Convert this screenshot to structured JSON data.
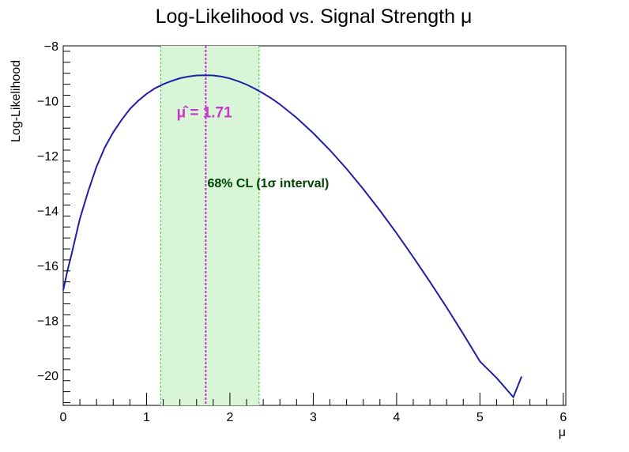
{
  "chart_data": {
    "type": "line",
    "title": "Log-Likelihood vs. Signal Strength   μ",
    "xlabel": "μ",
    "ylabel": "Log-Likelihood",
    "xlim": [
      0,
      6.03
    ],
    "ylim": [
      -21.1,
      -8
    ],
    "xticks": [
      0,
      1,
      2,
      3,
      4,
      5,
      6
    ],
    "yticks": [
      -20,
      -18,
      -16,
      -14,
      -12,
      -10,
      -8
    ],
    "grid": false,
    "series": [
      {
        "color": "#1f1fa6",
        "x": [
          0.0,
          0.05,
          0.1,
          0.2,
          0.3,
          0.4,
          0.5,
          0.6,
          0.7,
          0.8,
          0.9,
          1.0,
          1.1,
          1.2,
          1.3,
          1.4,
          1.5,
          1.6,
          1.71,
          1.8,
          1.9,
          2.0,
          2.1,
          2.2,
          2.3,
          2.4,
          2.5,
          2.6,
          2.8,
          3.0,
          3.2,
          3.4,
          3.6,
          3.8,
          4.0,
          4.2,
          4.4,
          4.6,
          4.8,
          5.0,
          5.2,
          5.4,
          5.5
        ],
        "y": [
          -16.9,
          -16.2,
          -15.6,
          -14.3,
          -13.3,
          -12.4,
          -11.7,
          -11.15,
          -10.7,
          -10.3,
          -10.0,
          -9.75,
          -9.55,
          -9.4,
          -9.28,
          -9.18,
          -9.12,
          -9.08,
          -9.07,
          -9.08,
          -9.12,
          -9.19,
          -9.29,
          -9.41,
          -9.56,
          -9.73,
          -9.92,
          -10.13,
          -10.62,
          -11.18,
          -11.8,
          -12.48,
          -13.22,
          -14.0,
          -14.83,
          -15.7,
          -16.6,
          -17.53,
          -18.5,
          -19.5,
          -20.1,
          -20.8,
          -20.05
        ]
      }
    ],
    "band": {
      "xmin": 1.17,
      "xmax": 2.35,
      "fill": "#d8f5d8",
      "edge": "#33cc33",
      "label": "68% CL (1σ interval)",
      "label_color": "#004400",
      "label_x": 1.73,
      "label_y": -13.15
    },
    "best_fit": {
      "x": 1.71,
      "color": "#cc33cc",
      "label": "μ̂ = 1.71",
      "label_x": 1.36,
      "label_y": -10.6
    }
  }
}
